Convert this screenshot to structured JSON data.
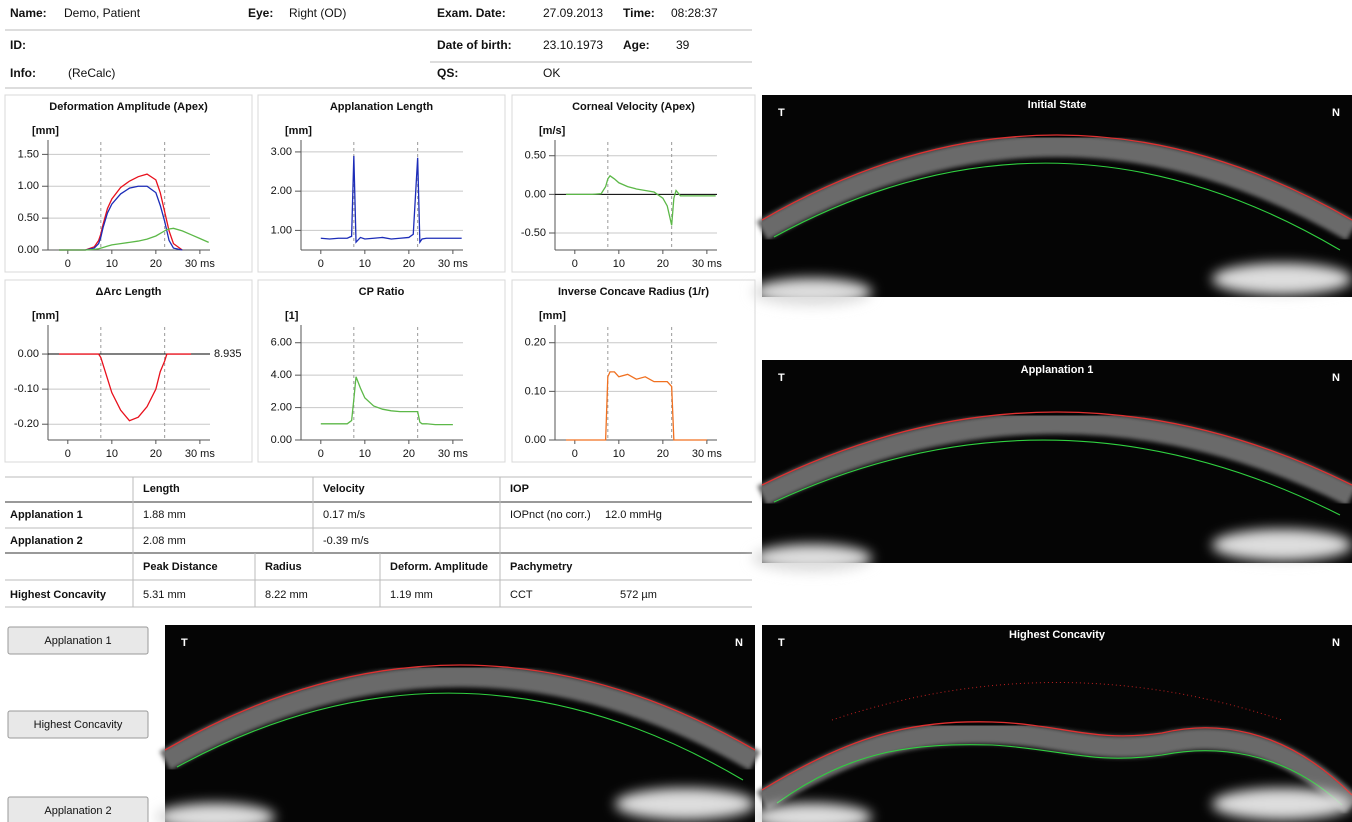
{
  "header": {
    "name_label": "Name:",
    "name": "Demo, Patient",
    "eye_label": "Eye:",
    "eye": "Right (OD)",
    "exam_date_label": "Exam. Date:",
    "exam_date": "27.09.2013",
    "time_label": "Time:",
    "time": "08:28:37",
    "id_label": "ID:",
    "dob_label": "Date of birth:",
    "dob": "23.10.1973",
    "age_label": "Age:",
    "age": "39",
    "info_label": "Info:",
    "info": "(ReCalc)",
    "qs_label": "QS:",
    "qs": "OK"
  },
  "chart_data": [
    {
      "type": "line",
      "title": "Deformation Amplitude (Apex)",
      "y_label": "[mm]",
      "grid": true,
      "reference_lines": [
        7.5,
        22
      ],
      "x": [
        -2,
        0,
        2,
        4,
        6,
        7,
        7.5,
        8,
        9,
        10,
        12,
        14,
        16,
        18,
        20,
        21,
        22,
        22.5,
        23,
        24,
        26,
        28,
        30,
        32
      ],
      "xlim": [
        -4.5,
        32.3
      ],
      "xticks": [
        0,
        10,
        20,
        {
          "value": 30,
          "label": "30 ms"
        }
      ],
      "ylim": [
        0,
        1.6
      ],
      "yticks": [
        {
          "value": 0,
          "label": "0.00"
        },
        {
          "value": 0.5,
          "label": "0.50"
        },
        {
          "value": 1,
          "label": "1.00"
        },
        {
          "value": 1.5,
          "label": "1.50"
        }
      ],
      "series": [
        {
          "color": "#e8101c",
          "values": [
            0,
            0,
            0,
            0,
            0.05,
            0.15,
            0.25,
            0.4,
            0.65,
            0.8,
            0.98,
            1.08,
            1.15,
            1.19,
            1.1,
            0.9,
            0.6,
            0.45,
            0.3,
            0.1,
            0,
            null,
            null,
            null
          ]
        },
        {
          "color": "#1c2cb8",
          "values": [
            0,
            0,
            0,
            0,
            0.03,
            0.1,
            0.2,
            0.35,
            0.58,
            0.72,
            0.88,
            0.97,
            1.0,
            1.0,
            0.9,
            0.7,
            0.45,
            0.3,
            0.15,
            0.03,
            0,
            null,
            null,
            null
          ]
        },
        {
          "color": "#5cb848",
          "values": [
            0,
            0,
            0,
            0,
            0.01,
            0.02,
            0.03,
            0.04,
            0.06,
            0.08,
            0.1,
            0.12,
            0.14,
            0.17,
            0.22,
            0.26,
            0.3,
            0.32,
            0.33,
            0.34,
            0.3,
            0.24,
            0.18,
            0.12
          ]
        }
      ]
    },
    {
      "type": "line",
      "title": "Applanation Length",
      "y_label": "[mm]",
      "grid": true,
      "reference_lines": [
        7.5,
        22
      ],
      "x": [
        -2,
        0,
        2,
        4,
        6,
        7,
        7.5,
        8,
        9,
        10,
        12,
        14,
        16,
        18,
        20,
        21,
        22,
        22.5,
        23,
        24,
        26,
        28,
        30,
        32
      ],
      "xlim": [
        -4.5,
        32.3
      ],
      "xticks": [
        0,
        10,
        20,
        {
          "value": 30,
          "label": "30 ms"
        }
      ],
      "ylim": [
        0.5,
        3.1
      ],
      "yticks": [
        {
          "value": 1,
          "label": "1.00"
        },
        {
          "value": 2,
          "label": "2.00"
        },
        {
          "value": 3,
          "label": "3.00"
        }
      ],
      "series": [
        {
          "color": "#1c2cb8",
          "values": [
            null,
            0.8,
            0.78,
            0.8,
            0.8,
            0.85,
            2.9,
            0.7,
            0.82,
            0.78,
            0.8,
            0.82,
            0.78,
            0.8,
            0.82,
            0.9,
            2.85,
            0.7,
            0.78,
            0.8,
            0.8,
            0.8,
            0.8,
            0.8
          ]
        }
      ]
    },
    {
      "type": "line",
      "title": "Corneal Velocity (Apex)",
      "y_label": "[m/s]",
      "grid": true,
      "zero_line": true,
      "reference_lines": [
        7.5,
        22
      ],
      "x": [
        -2,
        0,
        2,
        4,
        6,
        7,
        7.5,
        8,
        9,
        10,
        12,
        14,
        16,
        18,
        20,
        21,
        22,
        22.5,
        23,
        24,
        26,
        28,
        30,
        32
      ],
      "xlim": [
        -4.5,
        32.3
      ],
      "xticks": [
        0,
        10,
        20,
        {
          "value": 30,
          "label": "30 ms"
        }
      ],
      "ylim": [
        -0.72,
        0.6
      ],
      "yticks": [
        {
          "value": -0.5,
          "label": "-0.50"
        },
        {
          "value": 0,
          "label": "0.00"
        },
        {
          "value": 0.5,
          "label": "0.50"
        }
      ],
      "series": [
        {
          "color": "#5cb848",
          "values": [
            0,
            0,
            0,
            0,
            0.01,
            0.1,
            0.2,
            0.24,
            0.2,
            0.15,
            0.1,
            0.07,
            0.05,
            0.03,
            -0.05,
            -0.15,
            -0.4,
            -0.05,
            0.05,
            -0.02,
            -0.02,
            -0.02,
            -0.02,
            -0.02
          ]
        }
      ]
    },
    {
      "type": "line",
      "title": "ΔArc Length",
      "y_label": "[mm]",
      "grid": true,
      "zero_line": true,
      "annotation": "8.935",
      "reference_lines": [
        7.5,
        22
      ],
      "x": [
        -2,
        0,
        2,
        4,
        6,
        7,
        7.5,
        8,
        9,
        10,
        12,
        14,
        16,
        18,
        20,
        21,
        22,
        22.5,
        23,
        24,
        26,
        28,
        30,
        32
      ],
      "xlim": [
        -4.5,
        32.3
      ],
      "xticks": [
        0,
        10,
        20,
        {
          "value": 30,
          "label": "30 ms"
        }
      ],
      "ylim": [
        -0.245,
        0.06
      ],
      "yticks": [
        {
          "value": -0.2,
          "label": "-0.20"
        },
        {
          "value": -0.1,
          "label": "-0.10"
        },
        {
          "value": 0,
          "label": "0.00"
        }
      ],
      "series": [
        {
          "color": "#e8101c",
          "values": [
            0,
            0,
            0,
            0,
            0,
            0,
            -0.01,
            -0.03,
            -0.07,
            -0.11,
            -0.16,
            -0.19,
            -0.18,
            -0.15,
            -0.1,
            -0.05,
            -0.02,
            0,
            0,
            0,
            0,
            0,
            null,
            null
          ]
        }
      ]
    },
    {
      "type": "line",
      "title": "CP Ratio",
      "y_label": "[1]",
      "grid": true,
      "reference_lines": [
        7.5,
        22
      ],
      "x": [
        -2,
        0,
        2,
        4,
        6,
        7,
        7.5,
        8,
        9,
        10,
        12,
        14,
        16,
        18,
        20,
        21,
        22,
        22.5,
        23,
        24,
        26,
        28,
        30,
        32
      ],
      "xlim": [
        -4.5,
        32.3
      ],
      "xticks": [
        0,
        10,
        20,
        {
          "value": 30,
          "label": "30 ms"
        }
      ],
      "ylim": [
        0,
        6.6
      ],
      "yticks": [
        {
          "value": 0,
          "label": "0.00"
        },
        {
          "value": 2,
          "label": "2.00"
        },
        {
          "value": 4,
          "label": "4.00"
        },
        {
          "value": 6,
          "label": "6.00"
        }
      ],
      "series": [
        {
          "color": "#5cb848",
          "values": [
            null,
            1.0,
            1.0,
            1.0,
            1.0,
            1.2,
            2.5,
            3.9,
            3.2,
            2.6,
            2.1,
            1.9,
            1.8,
            1.75,
            1.75,
            1.75,
            1.75,
            1.1,
            1.0,
            1.0,
            0.95,
            0.95,
            0.95,
            null
          ]
        }
      ]
    },
    {
      "type": "line",
      "title": "Inverse Concave Radius (1/r)",
      "y_label": "[mm]",
      "grid": true,
      "reference_lines": [
        7.5,
        22
      ],
      "x": [
        -2,
        0,
        2,
        4,
        6,
        7,
        7.5,
        8,
        9,
        10,
        12,
        14,
        16,
        18,
        20,
        21,
        22,
        22.5,
        23,
        24,
        26,
        28,
        30,
        32
      ],
      "xlim": [
        -4.5,
        32.3
      ],
      "xticks": [
        0,
        10,
        20,
        {
          "value": 30,
          "label": "30 ms"
        }
      ],
      "ylim": [
        0,
        0.22
      ],
      "yticks": [
        {
          "value": 0,
          "label": "0.00"
        },
        {
          "value": 0.1,
          "label": "0.10"
        },
        {
          "value": 0.2,
          "label": "0.20"
        }
      ],
      "series": [
        {
          "color": "#f07020",
          "values": [
            0,
            0,
            0,
            0,
            0,
            0,
            0.13,
            0.14,
            0.14,
            0.13,
            0.135,
            0.125,
            0.13,
            0.12,
            0.12,
            0.12,
            0.11,
            0,
            0,
            0,
            0,
            0,
            0,
            null
          ]
        }
      ]
    }
  ],
  "table": {
    "group1_header": [
      "Length",
      "Velocity",
      "IOP"
    ],
    "applanation_rows": [
      [
        "Applanation 1",
        "1.88 mm",
        "0.17 m/s",
        "IOPnct (no corr.)",
        "12.0 mmHg"
      ],
      [
        "Applanation 2",
        "2.08 mm",
        "-0.39 m/s"
      ]
    ],
    "group2_header": [
      "Peak Distance",
      "Radius",
      "Deform. Amplitude",
      "Pachymetry"
    ],
    "concavity_row": [
      "Highest Concavity",
      "5.31 mm",
      "8.22 mm",
      "1.19 mm",
      "CCT",
      "572 µm"
    ]
  },
  "buttons": [
    "Applanation 1",
    "Highest Concavity",
    "Applanation 2"
  ],
  "images": [
    {
      "title": "Initial State",
      "left": "T",
      "right": "N"
    },
    {
      "title": "Applanation 1",
      "left": "T",
      "right": "N"
    },
    {
      "title": "Highest Concavity",
      "left": "T",
      "right": "N"
    },
    {
      "left": "T",
      "right": "N"
    }
  ]
}
